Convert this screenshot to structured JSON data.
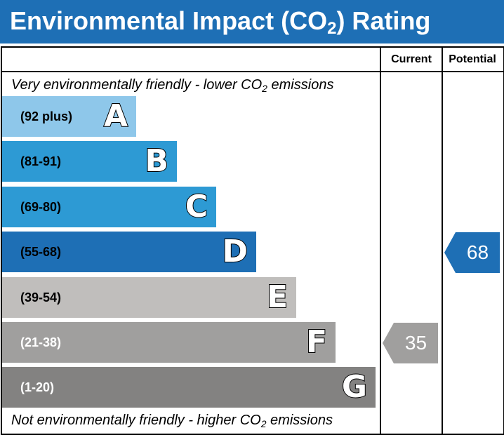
{
  "header": {
    "title_prefix": "Environmental Impact (CO",
    "title_sub": "2",
    "title_suffix": ") Rating",
    "background": "#1e6fb5"
  },
  "columns": {
    "current": "Current",
    "potential": "Potential"
  },
  "captions": {
    "top_prefix": "Very environmentally friendly - lower CO",
    "top_sub": "2",
    "top_suffix": " emissions",
    "bottom_prefix": "Not environmentally friendly - higher CO",
    "bottom_sub": "2",
    "bottom_suffix": " emissions"
  },
  "chart_data": {
    "type": "bar",
    "bands": [
      {
        "letter": "A",
        "range": "(92 plus)",
        "color": "#8ec7ea",
        "text_color": "#000000"
      },
      {
        "letter": "B",
        "range": "(81-91)",
        "color": "#2d9ad4",
        "text_color": "#000000"
      },
      {
        "letter": "C",
        "range": "(69-80)",
        "color": "#2d9ad4",
        "text_color": "#000000"
      },
      {
        "letter": "D",
        "range": "(55-68)",
        "color": "#1e6fb5",
        "text_color": "#000000"
      },
      {
        "letter": "E",
        "range": "(39-54)",
        "color": "#c0bebc",
        "text_color": "#000000"
      },
      {
        "letter": "F",
        "range": "(21-38)",
        "color": "#a09f9e",
        "text_color": "#ffffff"
      },
      {
        "letter": "G",
        "range": "(1-20)",
        "color": "#838281",
        "text_color": "#ffffff"
      }
    ],
    "current": {
      "value": "35",
      "band": "F",
      "color": "#a09f9e"
    },
    "potential": {
      "value": "68",
      "band": "D",
      "color": "#1e6fb5"
    }
  }
}
